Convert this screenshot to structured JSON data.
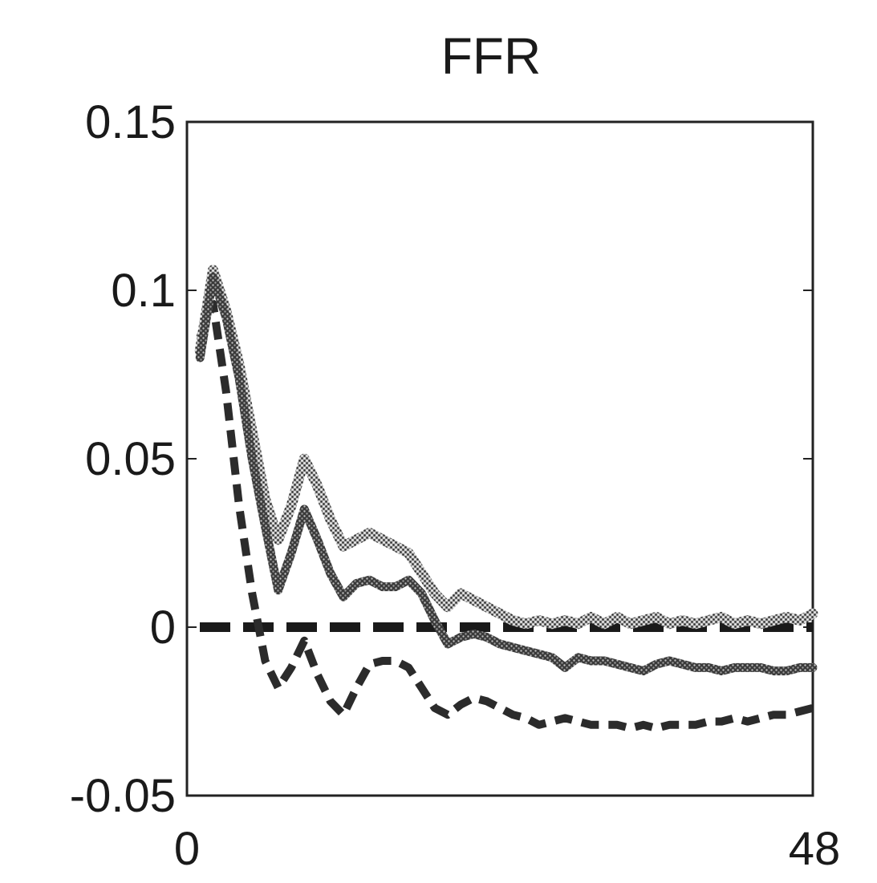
{
  "chart_data": {
    "type": "line",
    "title": "FFR",
    "xlabel": "",
    "ylabel": "",
    "xlim": [
      0,
      48
    ],
    "ylim": [
      -0.05,
      0.15
    ],
    "x_tick_labels": [
      "0",
      "48"
    ],
    "y_tick_labels": [
      "0.15",
      "0.1",
      "0.05",
      "0",
      "-0.05"
    ],
    "y_tick_values": [
      0.15,
      0.1,
      0.05,
      0,
      -0.05
    ],
    "grid": false,
    "legend": "none",
    "colors": {
      "response": "#3a3a3a",
      "upper_band": "#7a7a7a",
      "lower_band": "#2b2b2b",
      "zero_line": "#1a1a1a"
    },
    "x": [
      1,
      2,
      3,
      4,
      5,
      6,
      7,
      8,
      9,
      10,
      11,
      12,
      13,
      14,
      15,
      16,
      17,
      18,
      19,
      20,
      21,
      22,
      23,
      24,
      25,
      26,
      27,
      28,
      29,
      30,
      31,
      32,
      33,
      34,
      35,
      36,
      37,
      38,
      39,
      40,
      41,
      42,
      43,
      44,
      45,
      46,
      47,
      48
    ],
    "series": [
      {
        "role": "point estimate",
        "style": "solid",
        "values": [
          0.08,
          0.104,
          0.092,
          0.074,
          0.05,
          0.03,
          0.011,
          0.022,
          0.035,
          0.026,
          0.016,
          0.009,
          0.013,
          0.014,
          0.012,
          0.012,
          0.014,
          0.01,
          0.002,
          -0.005,
          -0.003,
          -0.002,
          -0.003,
          -0.005,
          -0.006,
          -0.007,
          -0.008,
          -0.009,
          -0.012,
          -0.009,
          -0.01,
          -0.01,
          -0.011,
          -0.012,
          -0.013,
          -0.011,
          -0.01,
          -0.011,
          -0.012,
          -0.012,
          -0.013,
          -0.012,
          -0.012,
          -0.012,
          -0.013,
          -0.013,
          -0.012,
          -0.012
        ]
      },
      {
        "role": "upper band",
        "style": "dotted",
        "values": [
          0.082,
          0.106,
          0.094,
          0.078,
          0.058,
          0.038,
          0.026,
          0.036,
          0.05,
          0.042,
          0.032,
          0.024,
          0.026,
          0.028,
          0.026,
          0.024,
          0.022,
          0.016,
          0.01,
          0.006,
          0.01,
          0.008,
          0.006,
          0.004,
          0.002,
          0.001,
          0.002,
          0.001,
          0.002,
          0.001,
          0.003,
          0.001,
          0.003,
          0.001,
          0.002,
          0.003,
          0.001,
          0.002,
          0.001,
          0.002,
          0.003,
          0.001,
          0.002,
          0.001,
          0.002,
          0.003,
          0.002,
          0.004
        ]
      },
      {
        "role": "lower band",
        "style": "dashed",
        "values": [
          0.086,
          0.096,
          0.07,
          0.036,
          0.01,
          -0.01,
          -0.018,
          -0.012,
          -0.004,
          -0.014,
          -0.022,
          -0.026,
          -0.018,
          -0.011,
          -0.01,
          -0.01,
          -0.012,
          -0.018,
          -0.024,
          -0.026,
          -0.023,
          -0.021,
          -0.022,
          -0.024,
          -0.026,
          -0.027,
          -0.029,
          -0.028,
          -0.027,
          -0.028,
          -0.029,
          -0.029,
          -0.029,
          -0.03,
          -0.029,
          -0.03,
          -0.029,
          -0.029,
          -0.029,
          -0.028,
          -0.028,
          -0.027,
          -0.028,
          -0.027,
          -0.026,
          -0.026,
          -0.025,
          -0.024
        ]
      }
    ],
    "zero_line": 0
  }
}
